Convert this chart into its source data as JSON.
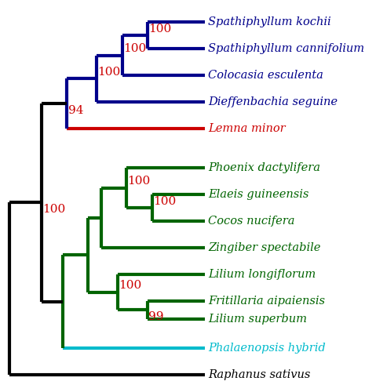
{
  "blue": "#00008B",
  "red": "#CC0000",
  "green": "#006400",
  "cyan": "#00BBCC",
  "black": "#000000",
  "boot_color": "#CC0000",
  "background": "#FFFFFF",
  "lw": 3.0,
  "label_fontsize": 10.5,
  "boot_fontsize": 11,
  "taxa_labels": [
    "Spathiphyllum kochii",
    "Spathiphyllum cannifolium",
    "Colocasia esculenta",
    "Dieffenbachia seguine",
    "Lemna minor",
    "Phoenix dactylifera",
    "Elaeis guineensis",
    "Cocos nucifera",
    "Zingiber spectabile",
    "Lilium longiflorum",
    "Fritillaria aipaiensis",
    "Lilium superbum",
    "Phalaenopsis hybrid",
    "Raphanus sativus"
  ],
  "taxa_colors": [
    "#00008B",
    "#00008B",
    "#00008B",
    "#00008B",
    "#CC0000",
    "#006400",
    "#006400",
    "#006400",
    "#006400",
    "#006400",
    "#006400",
    "#006400",
    "#00BBCC",
    "#000000"
  ]
}
